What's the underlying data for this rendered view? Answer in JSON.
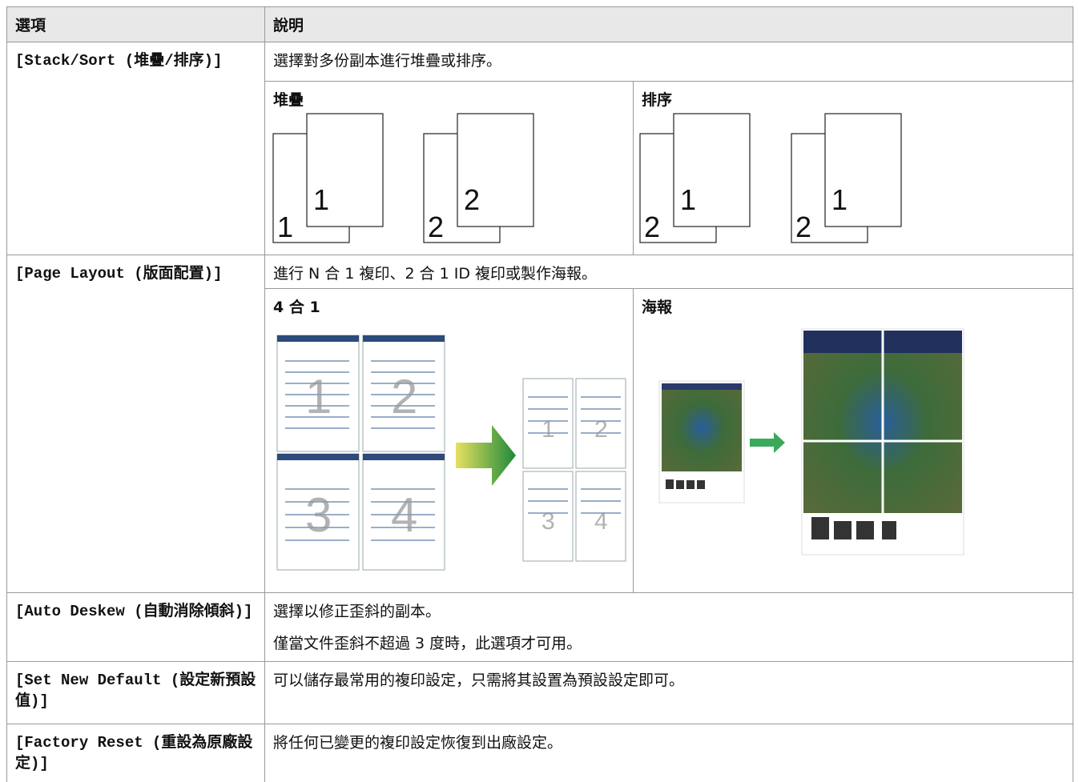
{
  "header": {
    "option": "選項",
    "description": "說明"
  },
  "rows": [
    {
      "option": "[Stack/Sort (堆疊/排序)]",
      "description": [
        "選擇對多份副本進行堆疊或排序。"
      ],
      "subtable": [
        {
          "title": "堆疊",
          "pages": [
            [
              "1",
              "1"
            ],
            [
              "2",
              "2"
            ]
          ]
        },
        {
          "title": "排序",
          "pages": [
            [
              "2",
              "1"
            ],
            [
              "2",
              "1"
            ]
          ]
        }
      ]
    },
    {
      "option": "[Page Layout (版面配置)]",
      "description": [
        "進行 N 合 1 複印、2 合 1 ID 複印或製作海報。"
      ],
      "subtable": [
        {
          "title": "4 合 1",
          "pages": [
            "1",
            "2",
            "3",
            "4"
          ]
        },
        {
          "title": "海報"
        }
      ]
    },
    {
      "option": "[Auto Deskew (自動消除傾斜)]",
      "description": [
        "選擇以修正歪斜的副本。",
        "僅當文件歪斜不超過 3 度時，此選項才可用。"
      ]
    },
    {
      "option": "[Set New Default (設定新預設值)]",
      "description": [
        "可以儲存最常用的複印設定，只需將其設置為預設設定即可。"
      ]
    },
    {
      "option": "[Factory Reset (重設為原廠設定)]",
      "description": [
        "將任何已變更的複印設定恢復到出廠設定。"
      ]
    }
  ]
}
